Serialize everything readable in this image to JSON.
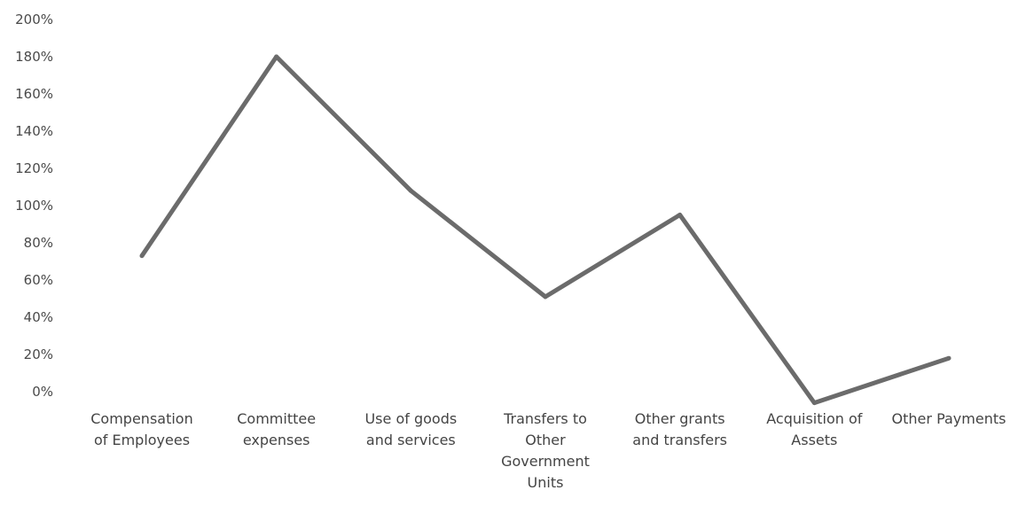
{
  "chart_data": {
    "type": "line",
    "title": "",
    "xlabel": "",
    "ylabel": "",
    "categories": [
      [
        "Compensation",
        "of Employees"
      ],
      [
        "Committee",
        "expenses"
      ],
      [
        "Use of goods",
        "and services"
      ],
      [
        "Transfers to",
        "Other",
        "Government",
        "Units"
      ],
      [
        "Other grants",
        "and transfers"
      ],
      [
        "Acquisition of",
        "Assets"
      ],
      [
        "Other Payments"
      ]
    ],
    "series": [
      {
        "values": [
          73,
          180,
          108,
          51,
          95,
          -6,
          18
        ]
      }
    ],
    "y_ticks": [
      "0%",
      "20%",
      "40%",
      "60%",
      "80%",
      "100%",
      "120%",
      "140%",
      "160%",
      "180%",
      "200%"
    ],
    "ylim": [
      0,
      200
    ],
    "grid": false,
    "legend": "none",
    "line_color": "#6b6b6b"
  }
}
